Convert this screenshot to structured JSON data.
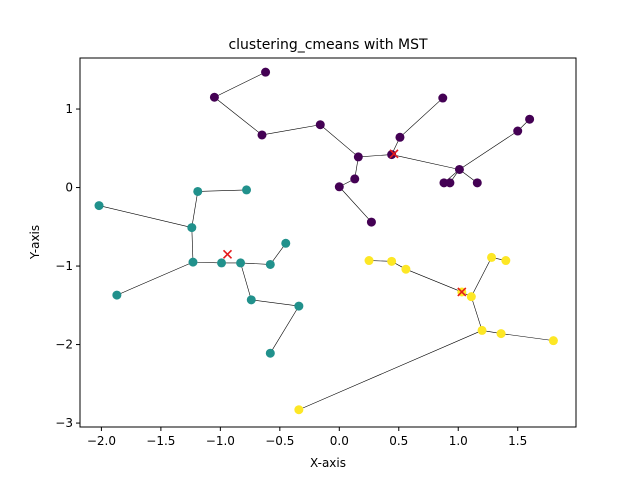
{
  "chart_data": {
    "type": "scatter",
    "title": "clustering_cmeans with MST",
    "xlabel": "X-axis",
    "ylabel": "Y-axis",
    "xlim": [
      -2.18,
      1.99
    ],
    "ylim": [
      -3.05,
      1.65
    ],
    "xticks": [
      -2.0,
      -1.5,
      -1.0,
      -0.5,
      0.0,
      0.5,
      1.0,
      1.5
    ],
    "xtick_labels": [
      "−2.0",
      "−1.5",
      "−1.0",
      "−0.5",
      "0.0",
      "0.5",
      "1.0",
      "1.5"
    ],
    "yticks": [
      1,
      0,
      -1,
      -2,
      -3
    ],
    "ytick_labels": [
      "1",
      "0",
      "−1",
      "−2",
      "−3"
    ],
    "grid": false,
    "edge_color": "#000000",
    "center_color": "#e41a1c",
    "clusters": [
      {
        "color": "#440154",
        "points": [
          [
            -0.62,
            1.47
          ],
          [
            -1.05,
            1.15
          ],
          [
            -0.65,
            0.67
          ],
          [
            -0.16,
            0.8
          ],
          [
            0.16,
            0.39
          ],
          [
            0.44,
            0.42
          ],
          [
            0.51,
            0.64
          ],
          [
            0.87,
            1.14
          ],
          [
            1.01,
            0.23
          ],
          [
            0.88,
            0.06
          ],
          [
            0.93,
            0.06
          ],
          [
            1.16,
            0.06
          ],
          [
            1.5,
            0.72
          ],
          [
            1.6,
            0.87
          ],
          [
            0.13,
            0.11
          ],
          [
            0.0,
            0.01
          ],
          [
            0.27,
            -0.44
          ]
        ],
        "edges": [
          [
            0,
            1
          ],
          [
            1,
            2
          ],
          [
            2,
            3
          ],
          [
            3,
            4
          ],
          [
            4,
            5
          ],
          [
            5,
            6
          ],
          [
            6,
            7
          ],
          [
            5,
            8
          ],
          [
            8,
            9
          ],
          [
            8,
            10
          ],
          [
            8,
            11
          ],
          [
            8,
            12
          ],
          [
            12,
            13
          ],
          [
            4,
            14
          ],
          [
            14,
            15
          ],
          [
            15,
            16
          ]
        ],
        "center": [
          0.46,
          0.43
        ]
      },
      {
        "color": "#21918c",
        "points": [
          [
            -2.02,
            -0.23
          ],
          [
            -1.24,
            -0.51
          ],
          [
            -1.19,
            -0.05
          ],
          [
            -0.78,
            -0.03
          ],
          [
            -1.23,
            -0.95
          ],
          [
            -1.87,
            -1.37
          ],
          [
            -0.99,
            -0.96
          ],
          [
            -0.83,
            -0.96
          ],
          [
            -0.58,
            -0.98
          ],
          [
            -0.45,
            -0.71
          ],
          [
            -0.74,
            -1.43
          ],
          [
            -0.34,
            -1.51
          ],
          [
            -0.58,
            -2.11
          ]
        ],
        "edges": [
          [
            0,
            1
          ],
          [
            1,
            2
          ],
          [
            2,
            3
          ],
          [
            1,
            4
          ],
          [
            4,
            5
          ],
          [
            4,
            6
          ],
          [
            6,
            7
          ],
          [
            7,
            8
          ],
          [
            8,
            9
          ],
          [
            7,
            10
          ],
          [
            10,
            11
          ],
          [
            11,
            12
          ]
        ],
        "center": [
          -0.94,
          -0.85
        ]
      },
      {
        "color": "#fde725",
        "points": [
          [
            0.25,
            -0.93
          ],
          [
            0.44,
            -0.94
          ],
          [
            0.56,
            -1.04
          ],
          [
            1.03,
            -1.33
          ],
          [
            1.11,
            -1.39
          ],
          [
            1.28,
            -0.89
          ],
          [
            1.4,
            -0.93
          ],
          [
            1.2,
            -1.82
          ],
          [
            1.36,
            -1.86
          ],
          [
            1.8,
            -1.95
          ],
          [
            -0.34,
            -2.83
          ]
        ],
        "edges": [
          [
            0,
            1
          ],
          [
            1,
            2
          ],
          [
            2,
            3
          ],
          [
            3,
            4
          ],
          [
            4,
            5
          ],
          [
            5,
            6
          ],
          [
            4,
            7
          ],
          [
            7,
            8
          ],
          [
            8,
            9
          ],
          [
            7,
            10
          ]
        ],
        "center": [
          1.03,
          -1.33
        ]
      }
    ]
  }
}
